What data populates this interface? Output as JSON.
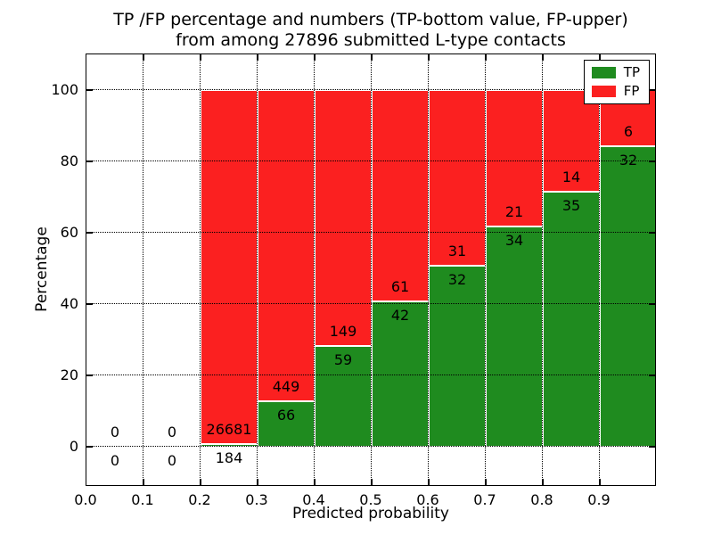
{
  "chart_data": {
    "type": "bar",
    "stacked": true,
    "normalized": "percent",
    "title_line1": "TP /FP percentage and numbers (TP-bottom value, FP-upper)",
    "title_line2": "from among 27896 submitted L-type contacts",
    "xlabel": "Predicted probability",
    "ylabel": "Percentage",
    "total_contacts": 27896,
    "x_tick_labels": [
      "0.0",
      "0.1",
      "0.2",
      "0.3",
      "0.4",
      "0.5",
      "0.6",
      "0.7",
      "0.8",
      "0.9"
    ],
    "y_tick_values": [
      0,
      20,
      40,
      60,
      80,
      100
    ],
    "xlim": [
      0.0,
      1.0
    ],
    "ylim": [
      -11.25,
      110
    ],
    "grid": true,
    "bar_width": 0.1,
    "colors": {
      "tp": "#1f8b1f",
      "fp": "#fb2020"
    },
    "legend": {
      "position": "upper right",
      "entries": [
        {
          "label": "TP",
          "series": "tp"
        },
        {
          "label": "FP",
          "series": "fp"
        }
      ]
    },
    "bins": [
      {
        "x_start": 0.0,
        "x_end": 0.1,
        "tp": 0,
        "fp": 0
      },
      {
        "x_start": 0.1,
        "x_end": 0.2,
        "tp": 0,
        "fp": 0
      },
      {
        "x_start": 0.2,
        "x_end": 0.3,
        "tp": 184,
        "fp": 26681
      },
      {
        "x_start": 0.3,
        "x_end": 0.4,
        "tp": 66,
        "fp": 449
      },
      {
        "x_start": 0.4,
        "x_end": 0.5,
        "tp": 59,
        "fp": 149
      },
      {
        "x_start": 0.5,
        "x_end": 0.6,
        "tp": 42,
        "fp": 61
      },
      {
        "x_start": 0.6,
        "x_end": 0.7,
        "tp": 32,
        "fp": 31
      },
      {
        "x_start": 0.7,
        "x_end": 0.8,
        "tp": 34,
        "fp": 21
      },
      {
        "x_start": 0.8,
        "x_end": 0.9,
        "tp": 35,
        "fp": 14
      },
      {
        "x_start": 0.9,
        "x_end": 1.0,
        "tp": 32,
        "fp": 6
      }
    ]
  }
}
